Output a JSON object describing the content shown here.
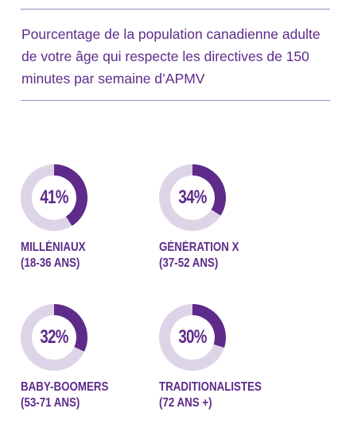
{
  "title": "Pourcentage de la population canadienne adulte de votre âge qui respecte les directives de 150 minutes par semaine d’APMV",
  "colors": {
    "accent": "#5e2b8a",
    "track": "#ddd5e7",
    "rule": "#9a86b8"
  },
  "chart_data": {
    "type": "pie",
    "title": "Pourcentage de la population canadienne adulte de votre âge qui respecte les directives de 150 minutes par semaine d’APMV",
    "items": [
      {
        "value": 41,
        "display": "41%",
        "label_line1": "MILLÉNIAUX",
        "label_line2": "(18-36 ANS)"
      },
      {
        "value": 34,
        "display": "34%",
        "label_line1": "GÉNÉRATION X",
        "label_line2": "(37-52 ANS)"
      },
      {
        "value": 32,
        "display": "32%",
        "label_line1": "BABY-BOOMERS",
        "label_line2": "(53-71 ANS)"
      },
      {
        "value": 30,
        "display": "30%",
        "label_line1": "TRADITIONALISTES",
        "label_line2": "(72 ANS +)"
      }
    ],
    "max": 100
  }
}
